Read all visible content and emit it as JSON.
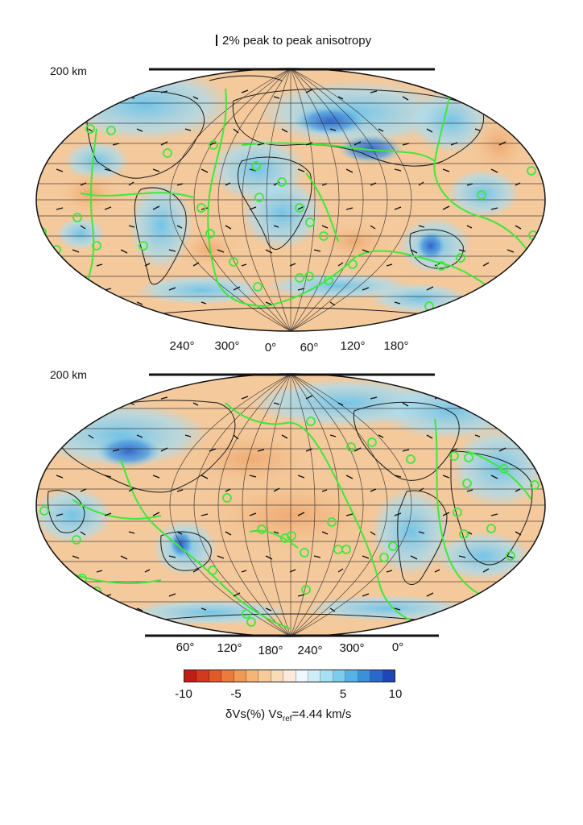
{
  "legend": {
    "anisotropy_label": "2% peak to peak anisotropy"
  },
  "maps": [
    {
      "depth_label": "200 km",
      "longitude_labels": [
        "240°",
        "300°",
        "0°",
        "60°",
        "120°",
        "180°"
      ],
      "center": "Atlantic / Africa (0°)"
    },
    {
      "depth_label": "200 km",
      "longitude_labels": [
        "60°",
        "120°",
        "180°",
        "240°",
        "300°",
        "0°"
      ],
      "center": "Pacific (180°)"
    }
  ],
  "colorbar": {
    "ticks": [
      "-10",
      "-5",
      "5",
      "10"
    ],
    "tick_values": [
      -10,
      -5,
      5,
      10
    ],
    "label_prefix": "δVs(%) Vs",
    "label_sub": "ref",
    "label_suffix": "=4.44 km/s",
    "colors": [
      "#c21d14",
      "#d23a1f",
      "#e05a2a",
      "#ea7b3c",
      "#f09a55",
      "#f4b577",
      "#f6cb99",
      "#f8dcb8",
      "#fbeadb",
      "#eef7fb",
      "#cdeef7",
      "#a6e0f2",
      "#7cccee",
      "#55b2e6",
      "#3b8fdb",
      "#2a68cc",
      "#1f46b6"
    ]
  },
  "map_colors": {
    "fast": "#72c6ea",
    "very_fast": "#3c78d4",
    "slow": "#f3c697",
    "neutral": "#f7f2ea",
    "plate_boundary": "#3ee83a",
    "hotspot": "#3ee83a",
    "coast": "#1a1a1a",
    "grid": "#222222"
  }
}
